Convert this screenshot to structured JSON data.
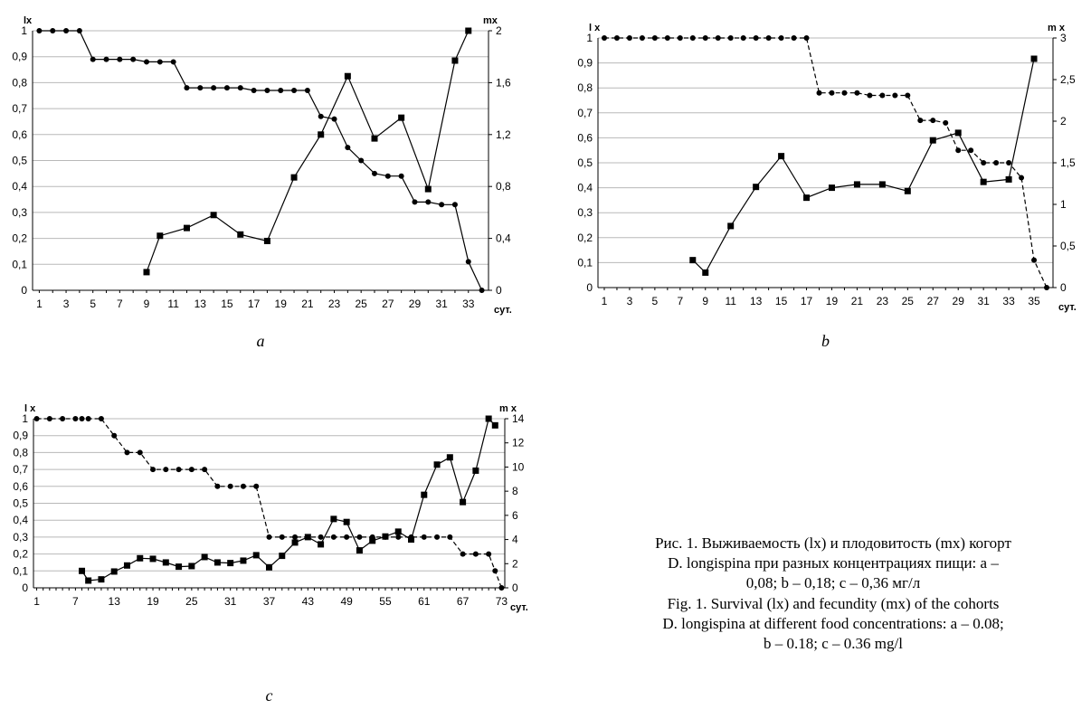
{
  "chart_data": [
    {
      "panel": "a",
      "type": "line",
      "label": "a",
      "left_axis_title": "lx",
      "right_axis_title": "mx",
      "x_unit": "сут.",
      "x_ticks": [
        1,
        3,
        5,
        7,
        9,
        11,
        13,
        15,
        17,
        19,
        21,
        23,
        25,
        27,
        29,
        31,
        33
      ],
      "x_range": [
        0.5,
        34.5
      ],
      "y_left_range": [
        0,
        1
      ],
      "y_left_ticks": [
        "0",
        "0,1",
        "0,2",
        "0,3",
        "0,4",
        "0,5",
        "0,6",
        "0,7",
        "0,8",
        "0,9",
        "1"
      ],
      "y_right_range": [
        0,
        2
      ],
      "y_right_ticks": [
        "0",
        "0,4",
        "0,8",
        "1,2",
        "1,6",
        "2"
      ],
      "grid": true,
      "series": [
        {
          "axis": "left",
          "marker": "circle",
          "dash": false,
          "x": [
            1,
            2,
            3,
            4,
            5,
            6,
            7,
            8,
            9,
            10,
            11,
            12,
            13,
            14,
            15,
            16,
            17,
            18,
            19,
            20,
            21,
            22,
            23,
            24,
            25,
            26,
            27,
            28,
            29,
            30,
            31,
            32,
            33,
            34
          ],
          "values": [
            1,
            1,
            1,
            1,
            0.89,
            0.89,
            0.89,
            0.89,
            0.88,
            0.88,
            0.88,
            0.78,
            0.78,
            0.78,
            0.78,
            0.78,
            0.77,
            0.77,
            0.77,
            0.77,
            0.77,
            0.67,
            0.66,
            0.55,
            0.5,
            0.45,
            0.44,
            0.44,
            0.34,
            0.34,
            0.33,
            0.33,
            0.11,
            0
          ]
        },
        {
          "axis": "right",
          "marker": "square",
          "dash": false,
          "x": [
            9,
            10,
            12,
            14,
            16,
            18,
            20,
            22,
            24,
            26,
            28,
            30,
            32,
            33
          ],
          "values": [
            0.14,
            0.42,
            0.48,
            0.58,
            0.43,
            0.38,
            0.87,
            1.2,
            1.65,
            1.17,
            1.33,
            0.78,
            1.77,
            2
          ]
        }
      ]
    },
    {
      "panel": "b",
      "type": "line",
      "label": "b",
      "left_axis_title": "l x",
      "right_axis_title": "m x",
      "x_unit": "сут.",
      "x_ticks": [
        1,
        3,
        5,
        7,
        9,
        11,
        13,
        15,
        17,
        19,
        21,
        23,
        25,
        27,
        29,
        31,
        33,
        35
      ],
      "x_range": [
        0.5,
        36.5
      ],
      "y_left_range": [
        0,
        1
      ],
      "y_left_ticks": [
        "0",
        "0,1",
        "0,2",
        "0,3",
        "0,4",
        "0,5",
        "0,6",
        "0,7",
        "0,8",
        "0,9",
        "1"
      ],
      "y_right_range": [
        0,
        3
      ],
      "y_right_ticks": [
        "0",
        "0,5",
        "1",
        "1,5",
        "2",
        "2,5",
        "3"
      ],
      "grid": true,
      "series": [
        {
          "axis": "left",
          "marker": "circle",
          "dash": true,
          "x": [
            1,
            2,
            3,
            4,
            5,
            6,
            7,
            8,
            9,
            10,
            11,
            12,
            13,
            14,
            15,
            16,
            17,
            18,
            19,
            20,
            21,
            22,
            23,
            24,
            25,
            26,
            27,
            28,
            29,
            30,
            31,
            32,
            33,
            34,
            35,
            36
          ],
          "values": [
            1,
            1,
            1,
            1,
            1,
            1,
            1,
            1,
            1,
            1,
            1,
            1,
            1,
            1,
            1,
            1,
            1,
            0.78,
            0.78,
            0.78,
            0.78,
            0.77,
            0.77,
            0.77,
            0.77,
            0.67,
            0.67,
            0.66,
            0.55,
            0.55,
            0.5,
            0.5,
            0.5,
            0.44,
            0.11,
            0
          ]
        },
        {
          "axis": "right",
          "marker": "square",
          "dash": false,
          "x": [
            8,
            9,
            11,
            13,
            15,
            17,
            19,
            21,
            23,
            25,
            27,
            29,
            31,
            33,
            35
          ],
          "values": [
            0.33,
            0.18,
            0.74,
            1.21,
            1.58,
            1.08,
            1.2,
            1.24,
            1.24,
            1.16,
            1.77,
            1.86,
            1.27,
            1.3,
            2.75
          ]
        }
      ]
    },
    {
      "panel": "c",
      "type": "line",
      "label": "c",
      "left_axis_title": "l x",
      "right_axis_title": "m x",
      "x_unit": "сут.",
      "x_ticks": [
        1,
        7,
        13,
        19,
        25,
        31,
        37,
        43,
        49,
        55,
        61,
        67,
        73
      ],
      "x_range": [
        0.5,
        73.5
      ],
      "y_left_range": [
        0,
        1
      ],
      "y_left_ticks": [
        "0",
        "0,1",
        "0,2",
        "0,3",
        "0,4",
        "0,5",
        "0,6",
        "0,7",
        "0,8",
        "0,9",
        "1"
      ],
      "y_right_range": [
        0,
        14
      ],
      "y_right_ticks": [
        "0",
        "2",
        "4",
        "6",
        "8",
        "10",
        "12",
        "14"
      ],
      "grid": true,
      "series": [
        {
          "axis": "left",
          "marker": "circle",
          "dash": true,
          "x": [
            1,
            3,
            5,
            7,
            8,
            9,
            11,
            13,
            15,
            17,
            19,
            21,
            23,
            25,
            27,
            29,
            31,
            33,
            35,
            37,
            39,
            41,
            43,
            45,
            47,
            49,
            51,
            53,
            55,
            57,
            59,
            61,
            63,
            65,
            67,
            69,
            71,
            72,
            73
          ],
          "values": [
            1,
            1,
            1,
            1,
            1,
            1,
            1,
            0.9,
            0.8,
            0.8,
            0.7,
            0.7,
            0.7,
            0.7,
            0.7,
            0.6,
            0.6,
            0.6,
            0.6,
            0.3,
            0.3,
            0.3,
            0.3,
            0.3,
            0.3,
            0.3,
            0.3,
            0.3,
            0.3,
            0.3,
            0.3,
            0.3,
            0.3,
            0.3,
            0.2,
            0.2,
            0.2,
            0.1,
            0
          ]
        },
        {
          "axis": "right",
          "marker": "square",
          "dash": false,
          "x": [
            8,
            9,
            11,
            13,
            15,
            17,
            19,
            21,
            23,
            25,
            27,
            29,
            31,
            33,
            35,
            37,
            39,
            41,
            43,
            45,
            47,
            49,
            51,
            53,
            55,
            57,
            59,
            61,
            63,
            65,
            67,
            69,
            71,
            72
          ],
          "values": [
            1.4,
            0.6,
            0.7,
            1.35,
            1.85,
            2.45,
            2.4,
            2.1,
            1.75,
            1.8,
            2.55,
            2.1,
            2.05,
            2.25,
            2.7,
            1.7,
            2.65,
            3.75,
            4.2,
            3.6,
            5.7,
            5.45,
            3.1,
            3.9,
            4.25,
            4.65,
            4.0,
            7.7,
            10.2,
            10.8,
            7.1,
            9.7,
            14,
            13.45
          ]
        }
      ]
    }
  ],
  "caption_ru": {
    "line1": "Рис. 1. Выживаемость (lx) и плодовитость (mx) когорт",
    "line2": "D. longispina при разных концентрациях пищи: a –",
    "line3": "0,08; b – 0,18; c – 0,36 мг/л"
  },
  "caption_en": {
    "line1": "Fig. 1. Survival (lx) and fecundity (mx) of the cohorts",
    "line2": "D. longispina at different food concentrations: a – 0.08;",
    "line3": "b – 0.18; c – 0.36 mg/l"
  }
}
